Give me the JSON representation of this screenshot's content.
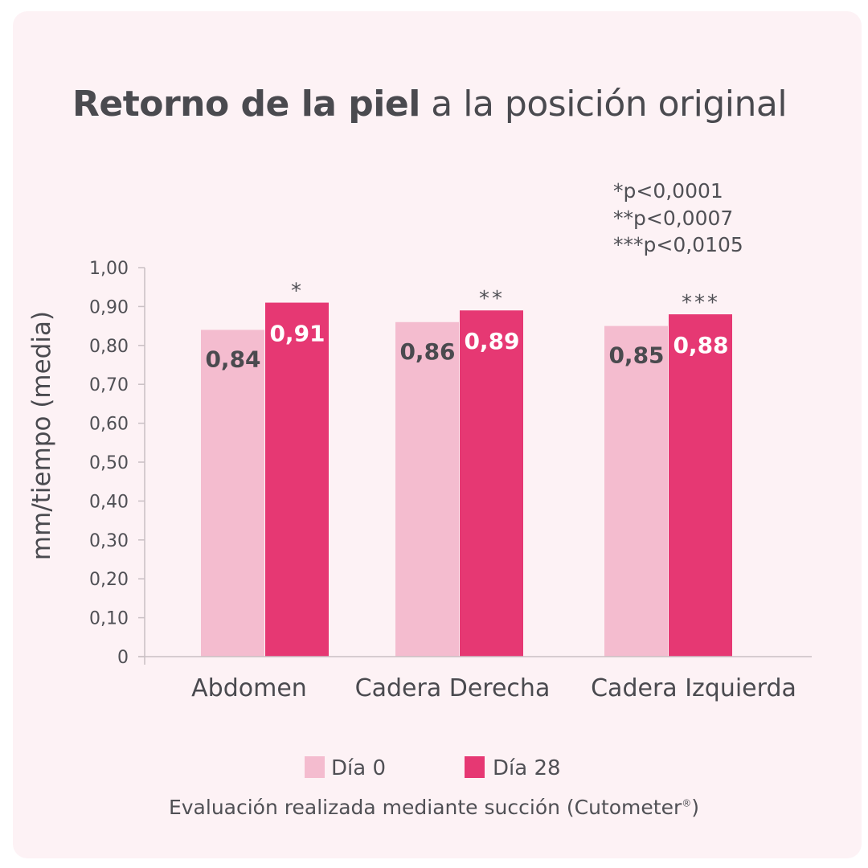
{
  "title": {
    "bold": "Retorno de la piel",
    "rest": " a la posición original"
  },
  "notes": [
    "*p<0,0001",
    "**p<0,0007",
    "***p<0,0105"
  ],
  "footnote": {
    "text": "Evaluación realizada mediante succión (Cutometer",
    "mark": "®",
    "close": ")"
  },
  "colors": {
    "dia0": "#f4bccf",
    "dia28": "#e63873",
    "axis": "#c9c0c4",
    "text": "#505055",
    "bg": "#fdf2f5"
  },
  "chart_data": {
    "type": "bar",
    "ylabel": "mm/tiempo (media)",
    "ylim": [
      0,
      1
    ],
    "yticks": [
      "0",
      "0,10",
      "0,20",
      "0,30",
      "0,40",
      "0,50",
      "0,60",
      "0,70",
      "0,80",
      "0,90",
      "1,00"
    ],
    "categories": [
      "Abdomen",
      "Cadera Derecha",
      "Cadera Izquierda"
    ],
    "series": [
      {
        "name": "Día 0",
        "values": [
          0.84,
          0.86,
          0.85
        ],
        "labels": [
          "0,84",
          "0,86",
          "0,85"
        ]
      },
      {
        "name": "Día 28",
        "values": [
          0.91,
          0.89,
          0.88
        ],
        "labels": [
          "0,91",
          "0,89",
          "0,88"
        ]
      }
    ],
    "significance": [
      "*",
      "**",
      "***"
    ],
    "legend": "bottom"
  }
}
